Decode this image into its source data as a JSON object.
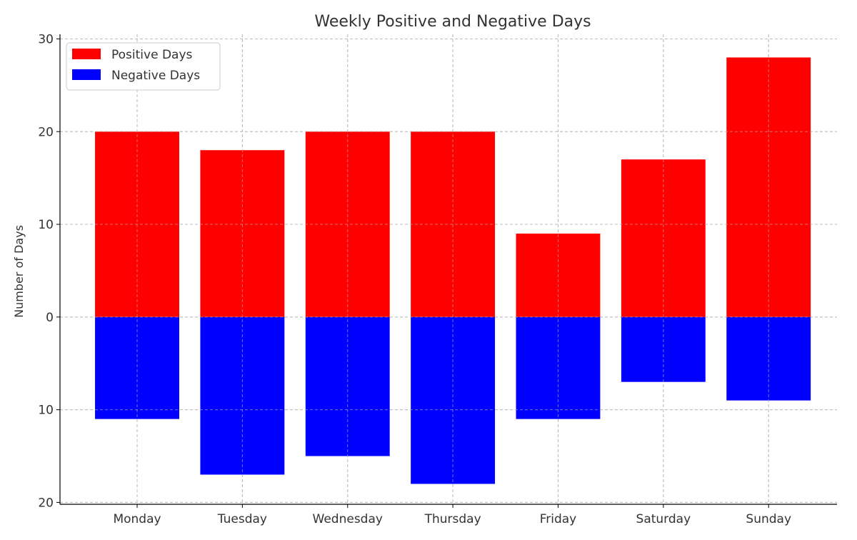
{
  "chart_data": {
    "type": "bar",
    "title": "Weekly Positive and Negative Days",
    "xlabel": "",
    "ylabel": "Number of Days",
    "categories": [
      "Monday",
      "Tuesday",
      "Wednesday",
      "Thursday",
      "Friday",
      "Saturday",
      "Sunday"
    ],
    "series": [
      {
        "name": "Positive Days",
        "color": "#ff0000",
        "values": [
          20,
          18,
          20,
          20,
          9,
          17,
          28
        ]
      },
      {
        "name": "Negative Days",
        "color": "#0000ff",
        "values": [
          -11,
          -17,
          -15,
          -18,
          -11,
          -7,
          -9
        ]
      }
    ],
    "ylim": [
      -20.2,
      30.5
    ],
    "yticks": [
      {
        "value": 30,
        "label": "30"
      },
      {
        "value": 20,
        "label": "20"
      },
      {
        "value": 10,
        "label": "10"
      },
      {
        "value": 0,
        "label": "0"
      },
      {
        "value": -10,
        "label": "10"
      },
      {
        "value": -20,
        "label": "20"
      }
    ],
    "grid": true,
    "legend": "top-left"
  }
}
